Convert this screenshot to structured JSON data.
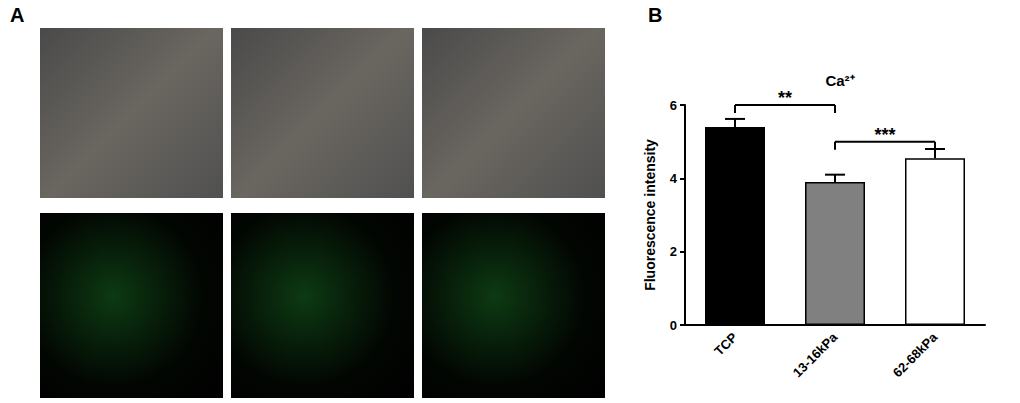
{
  "panel_labels": [
    "A",
    "B"
  ],
  "chart_data": {
    "type": "bar",
    "title": "Ca²⁺",
    "y_label": "Fluorescence intensity",
    "categories": [
      "TCP",
      "13-16kPa",
      "62-68kPa"
    ],
    "values": [
      5.4,
      3.9,
      4.55
    ],
    "errors": [
      0.22,
      0.2,
      0.25
    ],
    "colors": [
      "#000000",
      "#808080",
      "#ffffff"
    ],
    "ylim": [
      0,
      6
    ],
    "yticks": [
      0,
      2,
      4,
      6
    ],
    "grid": false,
    "annotations": [
      {
        "text": "**",
        "from": "TCP",
        "to": "13-16kPa",
        "y": 6
      },
      {
        "text": "***",
        "from": "13-16kPa",
        "to": "62-68kPa",
        "y": 5
      }
    ]
  }
}
